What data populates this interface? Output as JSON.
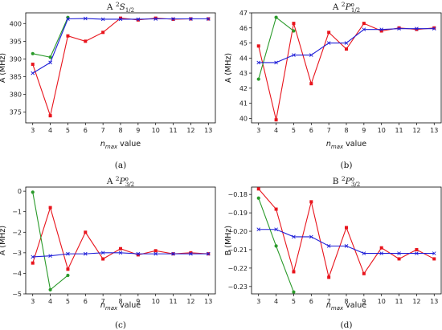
{
  "figure": {
    "series_colors": {
      "red": "#e8141c",
      "green": "#2a9a2a",
      "blue": "#1f1fd8"
    }
  },
  "chart_data": [
    {
      "type": "line",
      "panel_id": "a",
      "title": {
        "main": "A ",
        "sup": "2",
        "state": "S",
        "sub": "1/2",
        "o": false
      },
      "xlabel": {
        "base": "n",
        "sub": "max",
        "rest": " value"
      },
      "ylabel": "A (MHz)",
      "caption": "(a)",
      "xlim": [
        2.6,
        13.4
      ],
      "ylim": [
        372,
        403
      ],
      "xticks": [
        3,
        4,
        5,
        6,
        7,
        8,
        9,
        10,
        11,
        12,
        13
      ],
      "yticks": [
        375,
        380,
        385,
        390,
        395,
        400
      ],
      "series": [
        {
          "color": "red",
          "marker": "square",
          "x": [
            3,
            4,
            5,
            6,
            7,
            8,
            9,
            10,
            11,
            12,
            13
          ],
          "y": [
            388.5,
            374.0,
            396.5,
            395.0,
            397.5,
            401.5,
            401.0,
            401.5,
            401.2,
            401.3,
            401.3
          ]
        },
        {
          "color": "green",
          "marker": "circle",
          "x": [
            3,
            4,
            5
          ],
          "y": [
            391.5,
            390.5,
            401.7
          ]
        },
        {
          "color": "blue",
          "marker": "x",
          "x": [
            3,
            4,
            5,
            6,
            7,
            8,
            9,
            10,
            11,
            12,
            13
          ],
          "y": [
            386.0,
            389.0,
            401.3,
            401.4,
            401.2,
            401.2,
            401.2,
            401.3,
            401.3,
            401.3,
            401.3
          ]
        }
      ]
    },
    {
      "type": "line",
      "panel_id": "b",
      "title": {
        "main": "A ",
        "sup": "2",
        "state": "P",
        "sub": "1/2",
        "o": true
      },
      "xlabel": {
        "base": "n",
        "sub": "max",
        "rest": " value"
      },
      "ylabel": "A (MHz)",
      "caption": "(b)",
      "xlim": [
        2.6,
        13.4
      ],
      "ylim": [
        39.7,
        47.0
      ],
      "xticks": [
        3,
        4,
        5,
        6,
        7,
        8,
        9,
        10,
        11,
        12,
        13
      ],
      "yticks": [
        40,
        41,
        42,
        43,
        44,
        45,
        46,
        47
      ],
      "series": [
        {
          "color": "red",
          "marker": "square",
          "x": [
            3,
            4,
            5,
            6,
            7,
            8,
            9,
            10,
            11,
            12,
            13
          ],
          "y": [
            44.8,
            39.9,
            46.3,
            42.3,
            45.7,
            44.6,
            46.3,
            45.8,
            46.0,
            45.9,
            46.0
          ]
        },
        {
          "color": "green",
          "marker": "circle",
          "x": [
            3,
            4,
            5
          ],
          "y": [
            42.6,
            46.7,
            45.8
          ]
        },
        {
          "color": "blue",
          "marker": "x",
          "x": [
            3,
            4,
            5,
            6,
            7,
            8,
            9,
            10,
            11,
            12,
            13
          ],
          "y": [
            43.7,
            43.7,
            44.2,
            44.2,
            45.0,
            45.0,
            45.9,
            45.9,
            45.95,
            45.95,
            45.95
          ]
        }
      ]
    },
    {
      "type": "line",
      "panel_id": "c",
      "title": {
        "main": "A ",
        "sup": "2",
        "state": "P",
        "sub": "3/2",
        "o": true
      },
      "xlabel": {
        "base": "n",
        "sub": "max",
        "rest": " value"
      },
      "ylabel": "A (MHz)",
      "caption": "(c)",
      "xlim": [
        2.6,
        13.4
      ],
      "ylim": [
        -5.0,
        0.2
      ],
      "xticks": [
        3,
        4,
        5,
        6,
        7,
        8,
        9,
        10,
        11,
        12,
        13
      ],
      "yticks": [
        0,
        -1,
        -2,
        -3,
        -4,
        -5
      ],
      "series": [
        {
          "color": "red",
          "marker": "square",
          "x": [
            3,
            4,
            5,
            6,
            7,
            8,
            9,
            10,
            11,
            12,
            13
          ],
          "y": [
            -3.5,
            -0.8,
            -3.8,
            -2.0,
            -3.3,
            -2.8,
            -3.1,
            -2.9,
            -3.05,
            -3.0,
            -3.05
          ]
        },
        {
          "color": "green",
          "marker": "circle",
          "x": [
            3,
            4,
            5
          ],
          "y": [
            -0.05,
            -4.8,
            -4.1
          ]
        },
        {
          "color": "blue",
          "marker": "x",
          "x": [
            3,
            4,
            5,
            6,
            7,
            8,
            9,
            10,
            11,
            12,
            13
          ],
          "y": [
            -3.2,
            -3.15,
            -3.05,
            -3.05,
            -3.0,
            -3.0,
            -3.05,
            -3.05,
            -3.05,
            -3.05,
            -3.05
          ]
        }
      ]
    },
    {
      "type": "line",
      "panel_id": "d",
      "title": {
        "main": "B ",
        "sup": "2",
        "state": "P",
        "sub": "3/2",
        "o": true
      },
      "xlabel": {
        "base": "n",
        "sub": "max",
        "rest": " value"
      },
      "ylabel": "B (MHz)",
      "caption": "(d)",
      "xlim": [
        2.6,
        13.4
      ],
      "ylim": [
        -0.234,
        -0.176
      ],
      "xticks": [
        3,
        4,
        5,
        6,
        7,
        8,
        9,
        10,
        11,
        12,
        13
      ],
      "yticks": [
        -0.18,
        -0.19,
        -0.2,
        -0.21,
        -0.22,
        -0.23
      ],
      "ytick_labels": [
        "−0.18",
        "−0.19",
        "−0.20",
        "−0.21",
        "−0.22",
        "−0.23"
      ],
      "series": [
        {
          "color": "red",
          "marker": "square",
          "x": [
            3,
            4,
            5,
            6,
            7,
            8,
            9,
            10,
            11,
            12,
            13
          ],
          "y": [
            -0.177,
            -0.188,
            -0.222,
            -0.184,
            -0.225,
            -0.198,
            -0.223,
            -0.209,
            -0.215,
            -0.21,
            -0.215
          ]
        },
        {
          "color": "green",
          "marker": "circle",
          "x": [
            3,
            4,
            5
          ],
          "y": [
            -0.182,
            -0.208,
            -0.233
          ]
        },
        {
          "color": "blue",
          "marker": "x",
          "x": [
            3,
            4,
            5,
            6,
            7,
            8,
            9,
            10,
            11,
            12,
            13
          ],
          "y": [
            -0.199,
            -0.199,
            -0.203,
            -0.203,
            -0.208,
            -0.208,
            -0.212,
            -0.212,
            -0.212,
            -0.212,
            -0.212
          ]
        }
      ]
    }
  ]
}
